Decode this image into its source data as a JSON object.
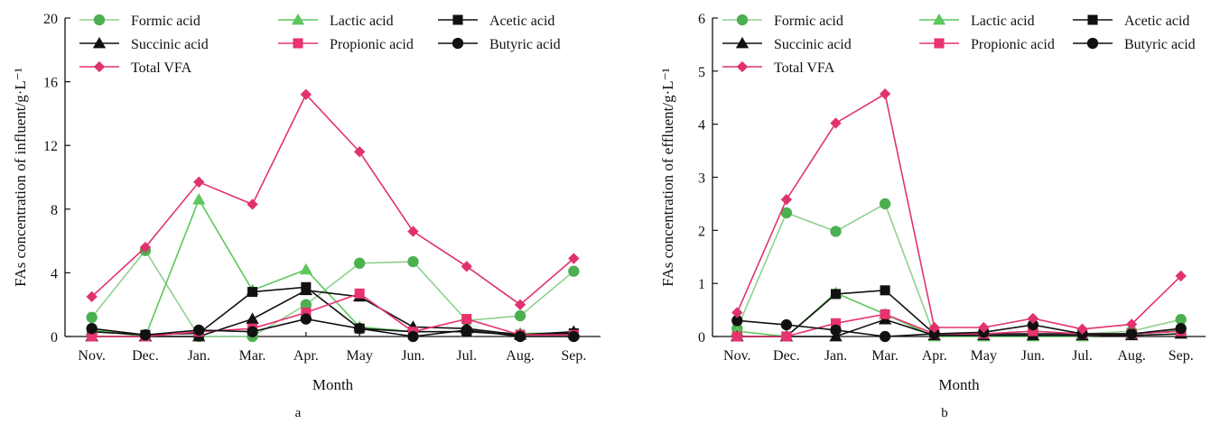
{
  "colors": {
    "formic": "#4caf50",
    "lactic": "#5cc75c",
    "acetic": "#111111",
    "succinic": "#111111",
    "propionic": "#e8336f",
    "butyric": "#111111",
    "total": "#e0336e",
    "formic_line": "#8fd18f"
  },
  "chart_data": [
    {
      "type": "line",
      "panel_label": "a",
      "xlabel": "Month",
      "ylabel": "FAs concentration of influent/g·L⁻¹",
      "categories": [
        "Nov.",
        "Dec.",
        "Jan.",
        "Mar.",
        "Apr.",
        "May",
        "Jun.",
        "Jul.",
        "Aug.",
        "Sep."
      ],
      "ylim": [
        0,
        20
      ],
      "yticks": [
        0,
        4,
        8,
        12,
        16,
        20
      ],
      "series": [
        {
          "name": "Formic acid",
          "marker": "circle",
          "color_key": "formic",
          "values": [
            1.2,
            5.4,
            0.0,
            0.0,
            2.0,
            4.6,
            4.7,
            1.0,
            1.3,
            4.1
          ]
        },
        {
          "name": "Lactic acid",
          "marker": "triangle",
          "color_key": "lactic",
          "values": [
            0.4,
            0.0,
            8.6,
            2.9,
            4.2,
            0.6,
            0.3,
            0.3,
            0.2,
            0.2
          ]
        },
        {
          "name": "Acetic acid",
          "marker": "square",
          "color_key": "acetic",
          "values": [
            0.3,
            0.1,
            0.2,
            2.8,
            3.1,
            0.5,
            0.3,
            0.3,
            0.1,
            0.2
          ]
        },
        {
          "name": "Succinic acid",
          "marker": "triangle",
          "color_key": "succinic",
          "values": [
            0.0,
            0.0,
            0.0,
            1.1,
            2.9,
            2.5,
            0.6,
            0.5,
            0.1,
            0.3
          ]
        },
        {
          "name": "Propionic acid",
          "marker": "square",
          "color_key": "propionic",
          "values": [
            0.0,
            0.0,
            0.3,
            0.5,
            1.5,
            2.7,
            0.3,
            1.1,
            0.1,
            0.1
          ]
        },
        {
          "name": "Butyric acid",
          "marker": "circle",
          "color_key": "butyric",
          "values": [
            0.5,
            0.1,
            0.4,
            0.3,
            1.1,
            0.5,
            0.0,
            0.4,
            0.0,
            0.0
          ]
        },
        {
          "name": "Total VFA",
          "marker": "diamond",
          "color_key": "total",
          "values": [
            2.5,
            5.6,
            9.7,
            8.3,
            15.2,
            11.6,
            6.6,
            4.4,
            2.0,
            4.9
          ]
        }
      ],
      "legend": "top-left, inside, 3 columns"
    },
    {
      "type": "line",
      "panel_label": "b",
      "xlabel": "Month",
      "ylabel": "FAs concentration of effluent/g·L⁻¹",
      "categories": [
        "Nov.",
        "Dec.",
        "Jan.",
        "Mar.",
        "Apr.",
        "May",
        "Jun.",
        "Jul.",
        "Aug.",
        "Sep."
      ],
      "ylim": [
        0,
        6
      ],
      "yticks": [
        0,
        1,
        2,
        3,
        4,
        5,
        6
      ],
      "series": [
        {
          "name": "Formic acid",
          "marker": "circle",
          "color_key": "formic",
          "values": [
            0.15,
            2.33,
            1.98,
            2.5,
            0.02,
            0.05,
            0.1,
            0.05,
            0.1,
            0.32
          ]
        },
        {
          "name": "Lactic acid",
          "marker": "triangle",
          "color_key": "lactic",
          "values": [
            0.1,
            0.0,
            0.82,
            0.42,
            0.0,
            0.0,
            0.0,
            0.0,
            0.05,
            0.12
          ]
        },
        {
          "name": "Acetic acid",
          "marker": "square",
          "color_key": "acetic",
          "values": [
            0.0,
            0.0,
            0.8,
            0.87,
            0.05,
            0.05,
            0.05,
            0.05,
            0.05,
            0.1
          ]
        },
        {
          "name": "Succinic acid",
          "marker": "triangle",
          "color_key": "succinic",
          "values": [
            0.0,
            0.0,
            0.0,
            0.32,
            0.02,
            0.02,
            0.02,
            0.02,
            0.02,
            0.05
          ]
        },
        {
          "name": "Propionic acid",
          "marker": "square",
          "color_key": "propionic",
          "values": [
            0.0,
            0.0,
            0.25,
            0.42,
            0.05,
            0.05,
            0.1,
            0.05,
            0.05,
            0.1
          ]
        },
        {
          "name": "Butyric acid",
          "marker": "circle",
          "color_key": "butyric",
          "values": [
            0.3,
            0.22,
            0.12,
            0.0,
            0.05,
            0.08,
            0.22,
            0.05,
            0.05,
            0.15
          ]
        },
        {
          "name": "Total VFA",
          "marker": "diamond",
          "color_key": "total",
          "values": [
            0.45,
            2.58,
            4.02,
            4.57,
            0.17,
            0.17,
            0.34,
            0.14,
            0.23,
            1.14
          ]
        }
      ],
      "legend": "top-left, inside, 3 columns"
    }
  ]
}
